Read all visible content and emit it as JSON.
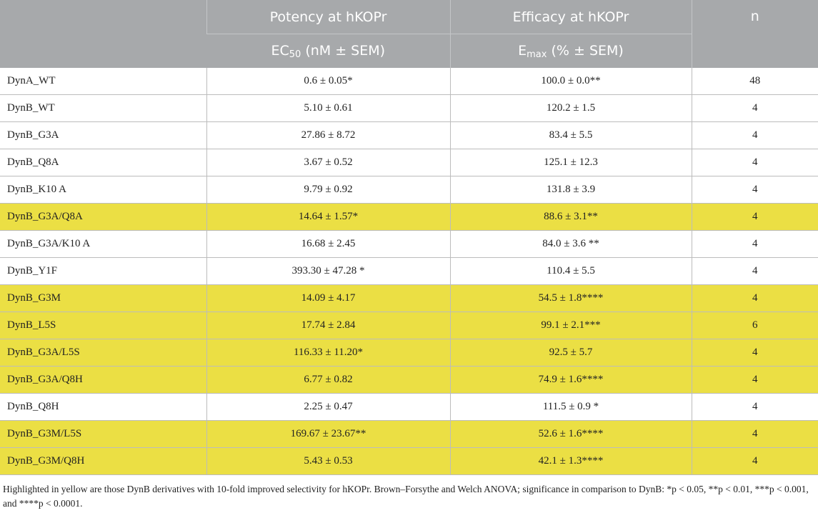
{
  "header": {
    "col1_title": "Potency at hKOPr",
    "col2_title": "Efficacy at hKOPr",
    "col3_title": "n",
    "col1_sub_a": "EC",
    "col1_sub_b": "50",
    "col1_sub_c": " (nM ± SEM)",
    "col2_sub_a": "E",
    "col2_sub_b": "max",
    "col2_sub_c": " (% ± SEM)"
  },
  "rows": [
    {
      "name": "DynA_WT",
      "potency": "0.6 ± 0.05*",
      "efficacy": "100.0 ± 0.0**",
      "n": "48",
      "highlight": false
    },
    {
      "name": "DynB_WT",
      "potency": "5.10 ± 0.61",
      "efficacy": "120.2 ± 1.5",
      "n": "4",
      "highlight": false
    },
    {
      "name": "DynB_G3A",
      "potency": "27.86 ± 8.72",
      "efficacy": "83.4 ± 5.5",
      "n": "4",
      "highlight": false
    },
    {
      "name": "DynB_Q8A",
      "potency": "3.67 ± 0.52",
      "efficacy": "125.1 ± 12.3",
      "n": "4",
      "highlight": false
    },
    {
      "name": "DynB_K10 A",
      "potency": "9.79 ± 0.92",
      "efficacy": "131.8 ± 3.9",
      "n": "4",
      "highlight": false
    },
    {
      "name": "DynB_G3A/Q8A",
      "potency": "14.64 ± 1.57*",
      "efficacy": "88.6 ± 3.1**",
      "n": "4",
      "highlight": true
    },
    {
      "name": "DynB_G3A/K10 A",
      "potency": "16.68 ± 2.45",
      "efficacy": "84.0 ± 3.6 **",
      "n": "4",
      "highlight": false
    },
    {
      "name": "DynB_Y1F",
      "potency": "393.30 ± 47.28 *",
      "efficacy": "110.4 ± 5.5",
      "n": "4",
      "highlight": false
    },
    {
      "name": "DynB_G3M",
      "potency": "14.09 ± 4.17",
      "efficacy": "54.5 ± 1.8****",
      "n": "4",
      "highlight": true
    },
    {
      "name": "DynB_L5S",
      "potency": "17.74 ± 2.84",
      "efficacy": "99.1 ± 2.1***",
      "n": "6",
      "highlight": true
    },
    {
      "name": "DynB_G3A/L5S",
      "potency": "116.33 ± 11.20*",
      "efficacy": "92.5 ± 5.7",
      "n": "4",
      "highlight": true
    },
    {
      "name": "DynB_G3A/Q8H",
      "potency": "6.77 ± 0.82",
      "efficacy": "74.9 ± 1.6****",
      "n": "4",
      "highlight": true
    },
    {
      "name": "DynB_Q8H",
      "potency": "2.25 ± 0.47",
      "efficacy": "111.5 ± 0.9 *",
      "n": "4",
      "highlight": false
    },
    {
      "name": "DynB_G3M/L5S",
      "potency": "169.67 ± 23.67**",
      "efficacy": "52.6 ± 1.6****",
      "n": "4",
      "highlight": true
    },
    {
      "name": "DynB_G3M/Q8H",
      "potency": "5.43 ± 0.53",
      "efficacy": "42.1 ± 1.3****",
      "n": "4",
      "highlight": true
    }
  ],
  "footnote": "Highlighted in yellow are those DynB derivatives with 10-fold improved selectivity for hKOPr. Brown–Forsythe and Welch ANOVA; significance in comparison to DynB: *p < 0.05, **p < 0.01, ***p < 0.001, and ****p < 0.0001.",
  "colors": {
    "header_bg": "#a7a9ab",
    "highlight": "#ebdf44"
  }
}
